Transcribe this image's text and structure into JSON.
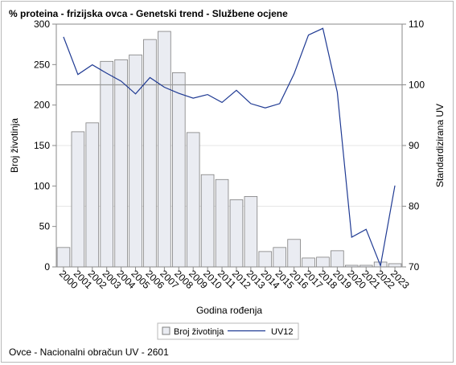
{
  "title": "% proteina - frizijska ovca - Genetski trend - Službene ocjene",
  "footer": "Ovce - Nacionalni obračun UV - 2601",
  "colors": {
    "bar_fill": "#eaecf2",
    "bar_stroke": "#7f7f7f",
    "line": "#1f3a93",
    "grid": "#e6e6e6",
    "reference_line": "#9a9a9a",
    "axis": "#8a8a8a"
  },
  "chart_data": {
    "type": "bar",
    "xlabel": "Godina rođenja",
    "ylabel": "Broj životinja",
    "y2label": "Standardizirana UV",
    "ylim": [
      0,
      300
    ],
    "y2lim": [
      70,
      110
    ],
    "yticks": [
      0,
      50,
      100,
      150,
      200,
      250,
      300
    ],
    "y2ticks": [
      70,
      80,
      90,
      100,
      110
    ],
    "reference_y2": 100,
    "grid": true,
    "legend_position": "bottom",
    "categories": [
      "2000",
      "2001",
      "2002",
      "2003",
      "2004",
      "2005",
      "2006",
      "2007",
      "2008",
      "2009",
      "2010",
      "2011",
      "2012",
      "2013",
      "2014",
      "2015",
      "2016",
      "2017",
      "2018",
      "2019",
      "2020",
      "2021",
      "2022",
      "2023"
    ],
    "series": [
      {
        "name": "Broj životinja",
        "type": "bar",
        "axis": "left",
        "values": [
          24,
          167,
          178,
          254,
          256,
          262,
          281,
          291,
          240,
          166,
          114,
          108,
          83,
          87,
          19,
          24,
          34,
          11,
          12,
          20,
          2,
          2,
          6,
          4
        ]
      },
      {
        "name": "UV12",
        "type": "line",
        "axis": "right",
        "values": [
          107.9,
          101.7,
          103.3,
          101.9,
          100.6,
          98.5,
          101.2,
          99.6,
          98.6,
          97.8,
          98.4,
          97.1,
          99.1,
          96.9,
          96.2,
          96.9,
          101.8,
          108.2,
          109.3,
          98.8,
          74.9,
          76.2,
          70.2,
          83.4
        ]
      }
    ]
  }
}
